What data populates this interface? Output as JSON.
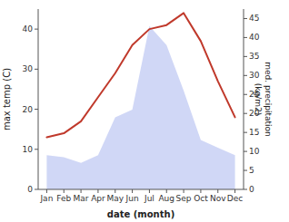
{
  "chart_data": {
    "type": "line",
    "categories": [
      "Jan",
      "Feb",
      "Mar",
      "Apr",
      "May",
      "Jun",
      "Jul",
      "Aug",
      "Sep",
      "Oct",
      "Nov",
      "Dec"
    ],
    "xlabel": "date (month)",
    "ylabel": "max temp (C)",
    "y2label": "med. precipitation\n(kg/m2)",
    "series": [
      {
        "type": "area",
        "axis": "y2",
        "color": "#c8d0f5",
        "values": [
          9.0,
          8.5,
          7.0,
          9.0,
          19.0,
          21.0,
          43.0,
          38.0,
          26.0,
          13.0,
          11.0,
          9.0
        ]
      },
      {
        "type": "line",
        "color": "#c0392b",
        "values": [
          13,
          14,
          17,
          23,
          29,
          36,
          40,
          41,
          44,
          37,
          27,
          18
        ]
      }
    ],
    "ylim": [
      0,
      45
    ],
    "yticks": [
      0,
      10,
      20,
      30,
      40
    ],
    "y2lim": [
      0,
      47.5
    ],
    "y2ticks": [
      0,
      5,
      10,
      15,
      20,
      25,
      30,
      35,
      40,
      45
    ],
    "grid": false
  }
}
